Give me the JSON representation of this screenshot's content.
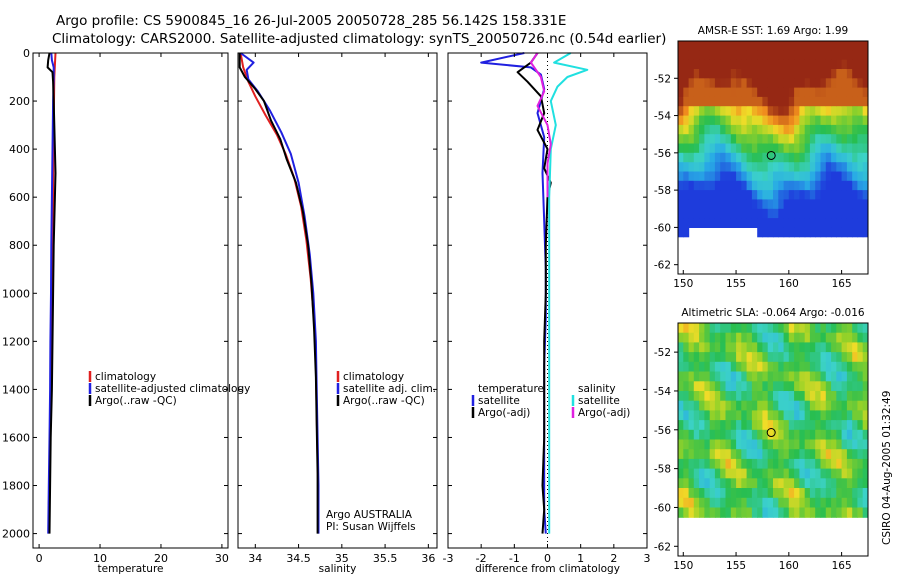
{
  "figure": {
    "title_line1": "Argo profile: CS 5900845_16 26-Jul-2005 20050728_285 56.142S 158.331E",
    "title_line2": "Climatology: CARS2000. Satellite-adjusted climatology: synTS_20050726.nc (0.54d earlier)",
    "side_stamp": "CSIRO 04-Aug-2005 01:32:49",
    "credit_line1": "Argo AUSTRALIA",
    "credit_line2": "PI: Susan Wijffels"
  },
  "chart_data": [
    {
      "id": "temperature",
      "type": "line",
      "xlabel": "temperature",
      "xlim": [
        -1,
        31
      ],
      "xticks": [
        0,
        10,
        20,
        30
      ],
      "ylim": [
        2060,
        0
      ],
      "yticks": [
        0,
        200,
        400,
        600,
        800,
        1000,
        1200,
        1400,
        1600,
        1800,
        2000
      ],
      "legend_position": "center-right",
      "series": [
        {
          "name": "climatology",
          "color": "#e02020",
          "points": [
            [
              2.7,
              0
            ],
            [
              2.6,
              50
            ],
            [
              2.5,
              100
            ],
            [
              2.45,
              200
            ],
            [
              2.4,
              300
            ],
            [
              2.35,
              400
            ],
            [
              2.3,
              600
            ],
            [
              2.2,
              800
            ],
            [
              2.1,
              1000
            ],
            [
              2.0,
              1200
            ],
            [
              1.9,
              1400
            ],
            [
              1.8,
              1600
            ],
            [
              1.7,
              1800
            ],
            [
              1.6,
              1880
            ]
          ]
        },
        {
          "name": "satellite-adjusted climatology",
          "color": "#2020e0",
          "points": [
            [
              2.0,
              0
            ],
            [
              2.1,
              30
            ],
            [
              2.4,
              60
            ],
            [
              2.4,
              100
            ],
            [
              2.3,
              200
            ],
            [
              2.2,
              400
            ],
            [
              2.1,
              600
            ],
            [
              2.0,
              800
            ],
            [
              1.95,
              1000
            ],
            [
              1.85,
              1200
            ],
            [
              1.8,
              1400
            ],
            [
              1.7,
              1600
            ],
            [
              1.6,
              1800
            ],
            [
              1.5,
              2000
            ]
          ]
        },
        {
          "name": "Argo(..raw -QC)",
          "color": "#000000",
          "points": [
            [
              1.7,
              0
            ],
            [
              1.5,
              30
            ],
            [
              1.4,
              60
            ],
            [
              2.2,
              80
            ],
            [
              2.3,
              120
            ],
            [
              2.4,
              200
            ],
            [
              2.5,
              300
            ],
            [
              2.6,
              400
            ],
            [
              2.7,
              500
            ],
            [
              2.6,
              600
            ],
            [
              2.4,
              800
            ],
            [
              2.3,
              1000
            ],
            [
              2.2,
              1200
            ],
            [
              2.1,
              1400
            ],
            [
              1.9,
              1600
            ],
            [
              1.8,
              1800
            ],
            [
              1.7,
              2000
            ]
          ]
        }
      ]
    },
    {
      "id": "salinity",
      "type": "line",
      "xlabel": "salinity",
      "xlim": [
        33.8,
        36.1
      ],
      "xticks": [
        34,
        34.5,
        35,
        35.5,
        36
      ],
      "ylim": [
        2060,
        0
      ],
      "yticks": [
        0,
        200,
        400,
        600,
        800,
        1000,
        1200,
        1400,
        1600,
        1800,
        2000
      ],
      "legend_position": "center-right",
      "series": [
        {
          "name": "climatology",
          "color": "#e02020",
          "points": [
            [
              33.83,
              0
            ],
            [
              33.86,
              60
            ],
            [
              33.92,
              120
            ],
            [
              34.0,
              180
            ],
            [
              34.12,
              260
            ],
            [
              34.25,
              340
            ],
            [
              34.35,
              420
            ],
            [
              34.45,
              520
            ],
            [
              34.53,
              640
            ],
            [
              34.59,
              780
            ],
            [
              34.64,
              940
            ],
            [
              34.68,
              1120
            ],
            [
              34.7,
              1300
            ],
            [
              34.71,
              1500
            ],
            [
              34.72,
              1700
            ],
            [
              34.73,
              1880
            ]
          ]
        },
        {
          "name": "satellite adj. clim.",
          "color": "#2020e0",
          "points": [
            [
              33.83,
              0
            ],
            [
              33.98,
              40
            ],
            [
              33.9,
              70
            ],
            [
              33.92,
              110
            ],
            [
              34.03,
              160
            ],
            [
              34.17,
              240
            ],
            [
              34.3,
              330
            ],
            [
              34.41,
              420
            ],
            [
              34.5,
              540
            ],
            [
              34.57,
              680
            ],
            [
              34.63,
              840
            ],
            [
              34.67,
              1000
            ],
            [
              34.7,
              1200
            ],
            [
              34.71,
              1400
            ],
            [
              34.72,
              1600
            ],
            [
              34.73,
              1800
            ],
            [
              34.73,
              2000
            ]
          ]
        },
        {
          "name": "Argo(..raw -QC)",
          "color": "#000000",
          "points": [
            [
              33.82,
              0
            ],
            [
              33.82,
              60
            ],
            [
              33.88,
              100
            ],
            [
              34.0,
              150
            ],
            [
              34.1,
              200
            ],
            [
              34.18,
              280
            ],
            [
              34.29,
              360
            ],
            [
              34.36,
              440
            ],
            [
              34.47,
              540
            ],
            [
              34.55,
              660
            ],
            [
              34.61,
              800
            ],
            [
              34.65,
              960
            ],
            [
              34.68,
              1150
            ],
            [
              34.7,
              1350
            ],
            [
              34.71,
              1550
            ],
            [
              34.72,
              1750
            ],
            [
              34.72,
              2000
            ]
          ]
        }
      ]
    },
    {
      "id": "difference",
      "type": "line",
      "xlabel": "difference from climatology",
      "xlim": [
        -3,
        3
      ],
      "xticks": [
        -3,
        -2,
        -1,
        0,
        1,
        2,
        3
      ],
      "ylim": [
        2060,
        0
      ],
      "yticks": [
        0,
        200,
        400,
        600,
        800,
        1000,
        1200,
        1400,
        1600,
        1800,
        2000
      ],
      "legend_left": {
        "heading": "temperature",
        "entries": [
          {
            "name": "satellite",
            "color": "#2020e0"
          },
          {
            "name": "Argo(-adj)",
            "color": "#000000"
          }
        ]
      },
      "legend_right": {
        "heading": "salinity",
        "entries": [
          {
            "name": "satellite",
            "color": "#20e0e0"
          },
          {
            "name": "Argo(-adj)",
            "color": "#e020e0"
          }
        ]
      },
      "series": [
        {
          "name": "temperature satellite",
          "color": "#2020e0",
          "points": [
            [
              -0.7,
              0
            ],
            [
              -2.0,
              40
            ],
            [
              -0.5,
              60
            ],
            [
              -0.2,
              90
            ],
            [
              -0.1,
              150
            ],
            [
              -0.3,
              250
            ],
            [
              -0.1,
              350
            ],
            [
              -0.15,
              500
            ],
            [
              -0.1,
              700
            ],
            [
              -0.05,
              900
            ],
            [
              -0.05,
              1100
            ],
            [
              -0.1,
              1300
            ],
            [
              -0.1,
              1500
            ],
            [
              -0.1,
              1700
            ],
            [
              -0.1,
              1900
            ],
            [
              -0.05,
              2000
            ]
          ]
        },
        {
          "name": "temperature Argo(-adj)",
          "color": "#000000",
          "points": [
            [
              -0.3,
              0
            ],
            [
              -0.5,
              40
            ],
            [
              -0.9,
              80
            ],
            [
              -0.6,
              120
            ],
            [
              -0.2,
              180
            ],
            [
              -0.1,
              250
            ],
            [
              -0.3,
              320
            ],
            [
              0.0,
              400
            ],
            [
              -0.1,
              480
            ],
            [
              0.1,
              540
            ],
            [
              0.0,
              600
            ],
            [
              -0.05,
              800
            ],
            [
              -0.05,
              1000
            ],
            [
              -0.1,
              1200
            ],
            [
              -0.1,
              1400
            ],
            [
              -0.1,
              1600
            ],
            [
              -0.15,
              1800
            ],
            [
              -0.1,
              1900
            ],
            [
              -0.15,
              2000
            ]
          ]
        },
        {
          "name": "salinity satellite",
          "color": "#20e0e0",
          "points": [
            [
              0.7,
              0
            ],
            [
              0.2,
              40
            ],
            [
              1.2,
              70
            ],
            [
              0.6,
              100
            ],
            [
              0.3,
              140
            ],
            [
              0.1,
              200
            ],
            [
              0.25,
              300
            ],
            [
              0.1,
              400
            ],
            [
              0.05,
              600
            ],
            [
              0.05,
              800
            ],
            [
              0.05,
              1000
            ],
            [
              0.05,
              1200
            ],
            [
              0.05,
              1400
            ],
            [
              0.05,
              1600
            ],
            [
              0.05,
              1800
            ],
            [
              0.05,
              2000
            ]
          ]
        },
        {
          "name": "salinity Argo(-adj)",
          "color": "#e020e0",
          "points": [
            [
              -0.3,
              0
            ],
            [
              -0.5,
              40
            ],
            [
              -0.2,
              100
            ],
            [
              -0.1,
              160
            ],
            [
              -0.3,
              220
            ],
            [
              0.0,
              300
            ],
            [
              0.1,
              380
            ],
            [
              0.0,
              460
            ],
            [
              0.0,
              600
            ]
          ]
        }
      ]
    },
    {
      "id": "sst_map",
      "type": "heatmap",
      "title": "AMSR-E SST: 1.69 Argo: 1.99",
      "xticks": [
        150,
        155,
        160,
        165
      ],
      "yticks": [
        -52,
        -54,
        -56,
        -58,
        -60,
        -62
      ],
      "xlim": [
        149.5,
        167.5
      ],
      "ylim": [
        -62.5,
        -50
      ],
      "profile_marker": {
        "lon": 158.33,
        "lat": -56.14
      }
    },
    {
      "id": "sla_map",
      "type": "heatmap",
      "title": "Altimetric SLA: -0.064 Argo: -0.016",
      "xticks": [
        150,
        155,
        160,
        165
      ],
      "yticks": [
        -52,
        -54,
        -56,
        -58,
        -60,
        -62
      ],
      "xlim": [
        149.5,
        167.5
      ],
      "ylim": [
        -62.5,
        -50.5
      ],
      "profile_marker": {
        "lon": 158.33,
        "lat": -56.14
      }
    }
  ]
}
